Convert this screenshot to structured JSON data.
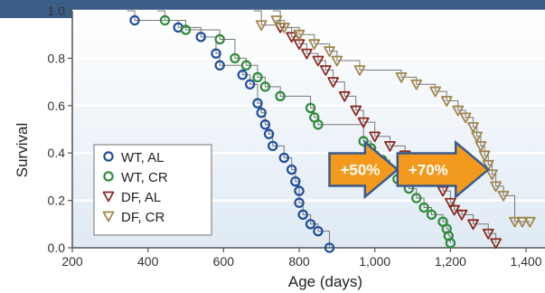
{
  "chart_data": {
    "type": "scatter",
    "title": "",
    "xlabel": "Age (days)",
    "ylabel": "Survival",
    "xlim": [
      200,
      1450
    ],
    "ylim": [
      0.0,
      1.0
    ],
    "x_ticks": [
      200,
      400,
      600,
      800,
      1000,
      1200,
      1400
    ],
    "x_tick_labels": [
      "200",
      "400",
      "600",
      "800",
      "1,000",
      "1,200",
      "1,400"
    ],
    "y_ticks": [
      0.0,
      0.2,
      0.4,
      0.6,
      0.8,
      1.0
    ],
    "y_tick_labels": [
      "0.0",
      "0.2",
      "0.4",
      "0.6",
      "0.8",
      "1.0"
    ],
    "legend_position": "bottom-left",
    "series": [
      {
        "name": "WT, AL",
        "marker": "circle",
        "color": "#1f4e9c",
        "points": [
          [
            365,
            0.96
          ],
          [
            480,
            0.93
          ],
          [
            540,
            0.89
          ],
          [
            580,
            0.82
          ],
          [
            590,
            0.77
          ],
          [
            650,
            0.73
          ],
          [
            670,
            0.69
          ],
          [
            690,
            0.61
          ],
          [
            700,
            0.57
          ],
          [
            710,
            0.52
          ],
          [
            720,
            0.48
          ],
          [
            730,
            0.43
          ],
          [
            760,
            0.38
          ],
          [
            780,
            0.33
          ],
          [
            790,
            0.28
          ],
          [
            800,
            0.24
          ],
          [
            800,
            0.19
          ],
          [
            810,
            0.14
          ],
          [
            830,
            0.1
          ],
          [
            850,
            0.07
          ],
          [
            880,
            0.0
          ]
        ]
      },
      {
        "name": "WT, CR",
        "marker": "circle",
        "color": "#2e8b3a",
        "points": [
          [
            445,
            0.96
          ],
          [
            500,
            0.92
          ],
          [
            590,
            0.88
          ],
          [
            630,
            0.8
          ],
          [
            660,
            0.77
          ],
          [
            690,
            0.72
          ],
          [
            710,
            0.68
          ],
          [
            750,
            0.64
          ],
          [
            830,
            0.59
          ],
          [
            840,
            0.55
          ],
          [
            850,
            0.52
          ],
          [
            970,
            0.45
          ],
          [
            990,
            0.42
          ],
          [
            1000,
            0.39
          ],
          [
            1020,
            0.37
          ],
          [
            1040,
            0.33
          ],
          [
            1060,
            0.29
          ],
          [
            1090,
            0.25
          ],
          [
            1110,
            0.21
          ],
          [
            1130,
            0.17
          ],
          [
            1150,
            0.14
          ],
          [
            1180,
            0.11
          ],
          [
            1190,
            0.08
          ],
          [
            1195,
            0.05
          ],
          [
            1200,
            0.02
          ]
        ]
      },
      {
        "name": "DF, AL",
        "marker": "triangle-down",
        "color": "#8b2a1e",
        "points": [
          [
            750,
            0.93
          ],
          [
            780,
            0.89
          ],
          [
            800,
            0.86
          ],
          [
            820,
            0.82
          ],
          [
            850,
            0.79
          ],
          [
            870,
            0.75
          ],
          [
            890,
            0.7
          ],
          [
            920,
            0.64
          ],
          [
            950,
            0.58
          ],
          [
            970,
            0.53
          ],
          [
            1000,
            0.47
          ],
          [
            1040,
            0.43
          ],
          [
            1080,
            0.39
          ],
          [
            1110,
            0.34
          ],
          [
            1150,
            0.29
          ],
          [
            1180,
            0.24
          ],
          [
            1200,
            0.19
          ],
          [
            1210,
            0.16
          ],
          [
            1230,
            0.14
          ],
          [
            1260,
            0.1
          ],
          [
            1300,
            0.06
          ],
          [
            1320,
            0.02
          ]
        ]
      },
      {
        "name": "DF, CR",
        "marker": "triangle-down",
        "color": "#a0864a",
        "points": [
          [
            700,
            0.94
          ],
          [
            740,
            0.96
          ],
          [
            760,
            0.93
          ],
          [
            800,
            0.9
          ],
          [
            840,
            0.86
          ],
          [
            880,
            0.83
          ],
          [
            900,
            0.79
          ],
          [
            960,
            0.75
          ],
          [
            1070,
            0.72
          ],
          [
            1110,
            0.69
          ],
          [
            1160,
            0.66
          ],
          [
            1190,
            0.62
          ],
          [
            1220,
            0.58
          ],
          [
            1240,
            0.55
          ],
          [
            1260,
            0.51
          ],
          [
            1270,
            0.47
          ],
          [
            1280,
            0.43
          ],
          [
            1290,
            0.39
          ],
          [
            1300,
            0.35
          ],
          [
            1310,
            0.31
          ],
          [
            1320,
            0.26
          ],
          [
            1340,
            0.22
          ],
          [
            1370,
            0.11
          ],
          [
            1390,
            0.11
          ],
          [
            1410,
            0.11
          ]
        ]
      }
    ],
    "annotations": [
      {
        "text": "+50%",
        "from_x": 880,
        "to_x": 1060,
        "y": 0.33
      },
      {
        "text": "+70%",
        "from_x": 1060,
        "to_x": 1300,
        "y": 0.33
      }
    ]
  }
}
